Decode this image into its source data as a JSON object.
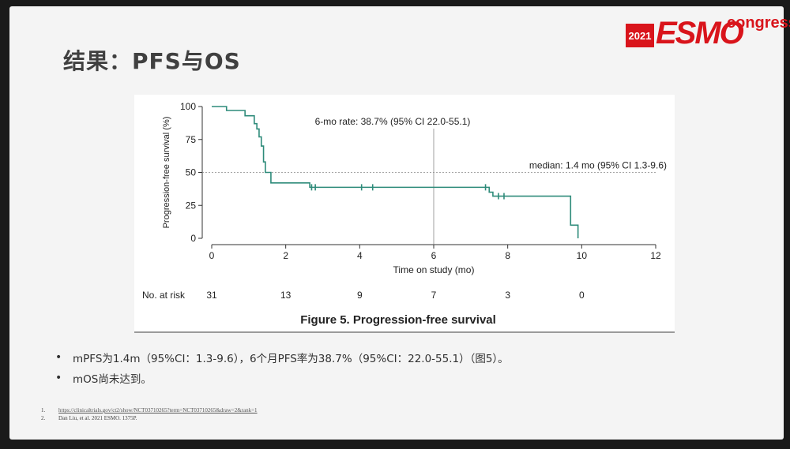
{
  "slide": {
    "title": "结果：PFS与OS",
    "logo": {
      "year": "2021",
      "brand": "ESMO",
      "suffix": "congress",
      "color": "#d9141b"
    },
    "bullets": [
      "mPFS为1.4m（95%CI：1.3-9.6），6个月PFS率为38.7%（95%CI：22.0-55.1）（图5）。",
      "mOS尚未达到。"
    ],
    "references": [
      {
        "num": "1.",
        "text": "https://clinicaltrials.gov/ct2/show/NCT03710265?term=NCT03710265&draw=2&rank=1"
      },
      {
        "num": "2.",
        "text": "Dan Liu, et al. 2021 ESMO. 1375P."
      }
    ]
  },
  "chart_data": {
    "type": "line",
    "subtype": "kaplan-meier",
    "caption": "Figure 5. Progression-free survival",
    "xlabel": "Time on study (mo)",
    "ylabel": "Progression-free survival (%)",
    "xlim": [
      0,
      12
    ],
    "ylim": [
      0,
      100
    ],
    "x_ticks": [
      0,
      2,
      4,
      6,
      8,
      10,
      12
    ],
    "y_ticks": [
      0,
      25,
      50,
      75,
      100
    ],
    "line_color": "#2e8b7a",
    "series": [
      {
        "steps": [
          [
            0,
            100
          ],
          [
            0.4,
            100
          ],
          [
            0.4,
            97
          ],
          [
            0.9,
            97
          ],
          [
            0.9,
            93
          ],
          [
            1.15,
            93
          ],
          [
            1.15,
            87
          ],
          [
            1.22,
            87
          ],
          [
            1.22,
            83
          ],
          [
            1.28,
            83
          ],
          [
            1.28,
            77
          ],
          [
            1.34,
            77
          ],
          [
            1.34,
            70
          ],
          [
            1.4,
            70
          ],
          [
            1.4,
            58
          ],
          [
            1.45,
            58
          ],
          [
            1.45,
            50
          ],
          [
            1.6,
            50
          ],
          [
            1.6,
            42
          ],
          [
            2.65,
            42
          ],
          [
            2.65,
            38.7
          ],
          [
            7.5,
            38.7
          ],
          [
            7.5,
            35
          ],
          [
            7.6,
            35
          ],
          [
            7.6,
            32
          ],
          [
            9.7,
            32
          ],
          [
            9.7,
            10
          ],
          [
            9.9,
            10
          ],
          [
            9.9,
            0
          ]
        ],
        "censored": [
          [
            2.7,
            38.7
          ],
          [
            2.8,
            38.7
          ],
          [
            4.05,
            38.7
          ],
          [
            4.35,
            38.7
          ],
          [
            7.4,
            38.7
          ],
          [
            7.75,
            32
          ],
          [
            7.9,
            32
          ]
        ]
      }
    ],
    "reference_lines": {
      "vertical_x": 6,
      "horizontal_y": 50
    },
    "annotations": {
      "six_month": "6-mo rate: 38.7% (95% CI 22.0-55.1)",
      "median": "median: 1.4 mo (95% CI 1.3-9.6)"
    },
    "risk_table": {
      "label": "No. at risk",
      "times": [
        0,
        2,
        4,
        6,
        8,
        10
      ],
      "counts": [
        "31",
        "13",
        "9",
        "7",
        "3",
        "0"
      ]
    }
  }
}
